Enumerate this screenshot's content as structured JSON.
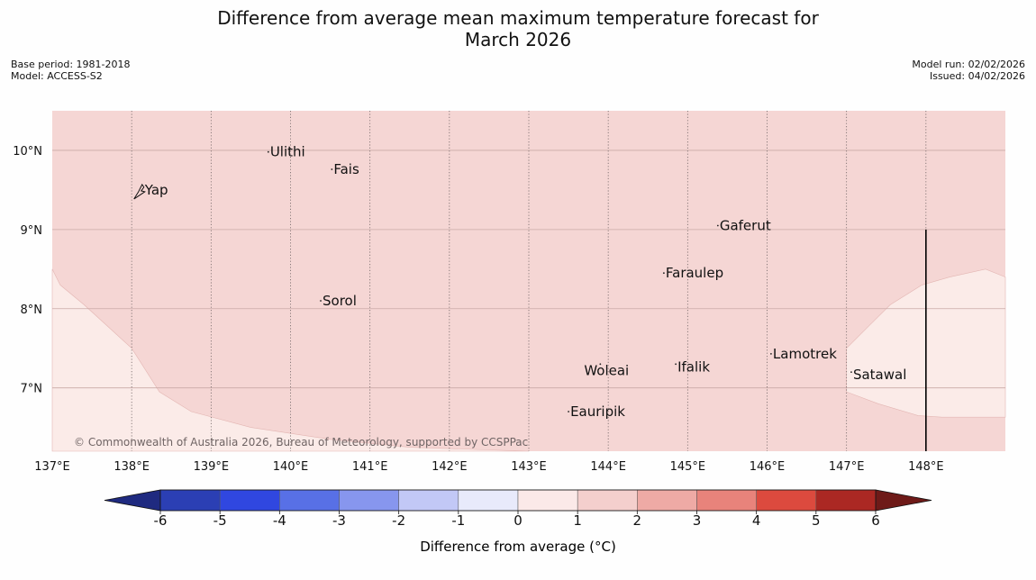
{
  "title_line1": "Difference from average mean maximum temperature forecast for",
  "title_line2": "March 2026",
  "meta": {
    "base_period": "Base period: 1981-2018",
    "model": "Model: ACCESS-S2",
    "model_run": "Model run: 02/02/2026",
    "issued": "Issued: 04/02/2026"
  },
  "map": {
    "extent": {
      "lon_min": 137,
      "lon_max": 149,
      "lat_min": 6.2,
      "lat_max": 10.5
    },
    "background_color": "#f5d6d4",
    "lon_ticks": [
      {
        "value": 137,
        "label": "137°E"
      },
      {
        "value": 138,
        "label": "138°E"
      },
      {
        "value": 139,
        "label": "139°E"
      },
      {
        "value": 140,
        "label": "140°E"
      },
      {
        "value": 141,
        "label": "141°E"
      },
      {
        "value": 142,
        "label": "142°E"
      },
      {
        "value": 143,
        "label": "143°E"
      },
      {
        "value": 144,
        "label": "144°E"
      },
      {
        "value": 145,
        "label": "145°E"
      },
      {
        "value": 146,
        "label": "146°E"
      },
      {
        "value": 147,
        "label": "147°E"
      },
      {
        "value": 148,
        "label": "148°E"
      }
    ],
    "lat_ticks": [
      {
        "value": 10,
        "label": "10°N"
      },
      {
        "value": 9,
        "label": "9°N"
      },
      {
        "value": 8,
        "label": "8°N"
      },
      {
        "value": 7,
        "label": "7°N"
      }
    ],
    "regions": [
      {
        "name": "southwest-0-to-1-region",
        "color": "#fbebe8",
        "points": [
          [
            137,
            8.5
          ],
          [
            137.1,
            8.3
          ],
          [
            137.4,
            8.05
          ],
          [
            138,
            7.5
          ],
          [
            138.35,
            6.95
          ],
          [
            138.75,
            6.7
          ],
          [
            139.5,
            6.5
          ],
          [
            140.5,
            6.35
          ],
          [
            141.5,
            6.25
          ],
          [
            143,
            6.2
          ],
          [
            137,
            6.2
          ]
        ]
      },
      {
        "name": "southeast-0-to-1-region",
        "color": "#fbebe8",
        "points": [
          [
            149,
            8.4
          ],
          [
            148.75,
            8.5
          ],
          [
            148.3,
            8.4
          ],
          [
            147.95,
            8.3
          ],
          [
            147.55,
            8.05
          ],
          [
            147.3,
            7.8
          ],
          [
            147,
            7.5
          ],
          [
            147,
            6.95
          ],
          [
            147.4,
            6.8
          ],
          [
            147.9,
            6.65
          ],
          [
            148.2,
            6.63
          ],
          [
            149,
            6.63
          ]
        ]
      }
    ],
    "meridian_line": {
      "lon": 148,
      "lat_top": 9.0,
      "lat_bottom": 6.2
    },
    "islands": [
      {
        "name": "Yap",
        "label": "Yap",
        "lon": 138.12,
        "lat": 9.5,
        "label_dx": 4,
        "label_dy": 5
      },
      {
        "name": "Ulithi",
        "label": "Ulithi",
        "lon": 139.72,
        "lat": 9.98,
        "label_dx": 2,
        "label_dy": 5
      },
      {
        "name": "Fais",
        "label": "Fais",
        "lon": 140.52,
        "lat": 9.76,
        "label_dx": 2,
        "label_dy": 5
      },
      {
        "name": "Gaferut",
        "label": "Gaferut",
        "lon": 145.38,
        "lat": 9.05,
        "label_dx": 2,
        "label_dy": 5
      },
      {
        "name": "Faraulep",
        "label": "Faraulep",
        "lon": 144.7,
        "lat": 8.45,
        "label_dx": 2,
        "label_dy": 5
      },
      {
        "name": "Sorol",
        "label": "Sorol",
        "lon": 140.38,
        "lat": 8.1,
        "label_dx": 2,
        "label_dy": 5
      },
      {
        "name": "Woleai",
        "label": "Woleai",
        "lon": 143.9,
        "lat": 7.3,
        "label_dx": -18,
        "label_dy": 12
      },
      {
        "name": "Ifalik",
        "label": "Ifalik",
        "lon": 144.85,
        "lat": 7.3,
        "label_dx": 2,
        "label_dy": 8
      },
      {
        "name": "Lamotrek",
        "label": "Lamotrek",
        "lon": 146.05,
        "lat": 7.43,
        "label_dx": 2,
        "label_dy": 5
      },
      {
        "name": "Satawal",
        "label": "Satawal",
        "lon": 147.06,
        "lat": 7.2,
        "label_dx": 2,
        "label_dy": 8
      },
      {
        "name": "Eauripik",
        "label": "Eauripik",
        "lon": 143.5,
        "lat": 6.7,
        "label_dx": 2,
        "label_dy": 5
      }
    ],
    "copyright": "© Commonwealth of Australia 2026, Bureau of Meteorology, supported by CCSPPac"
  },
  "colorbar": {
    "label": "Difference from average (°C)",
    "ticks": [
      "-6",
      "-5",
      "-4",
      "-3",
      "-2",
      "-1",
      "0",
      "1",
      "2",
      "3",
      "4",
      "5",
      "6"
    ],
    "colors": [
      "#2b3fb4",
      "#3047e0",
      "#5870e6",
      "#8796ee",
      "#c2c8f6",
      "#e8eafb",
      "#fbe9e8",
      "#f4cfcd",
      "#eeaaa5",
      "#e8837b",
      "#dc4a3e",
      "#ab2823"
    ],
    "under_color": "#1f2a80",
    "over_color": "#6e1a18"
  }
}
